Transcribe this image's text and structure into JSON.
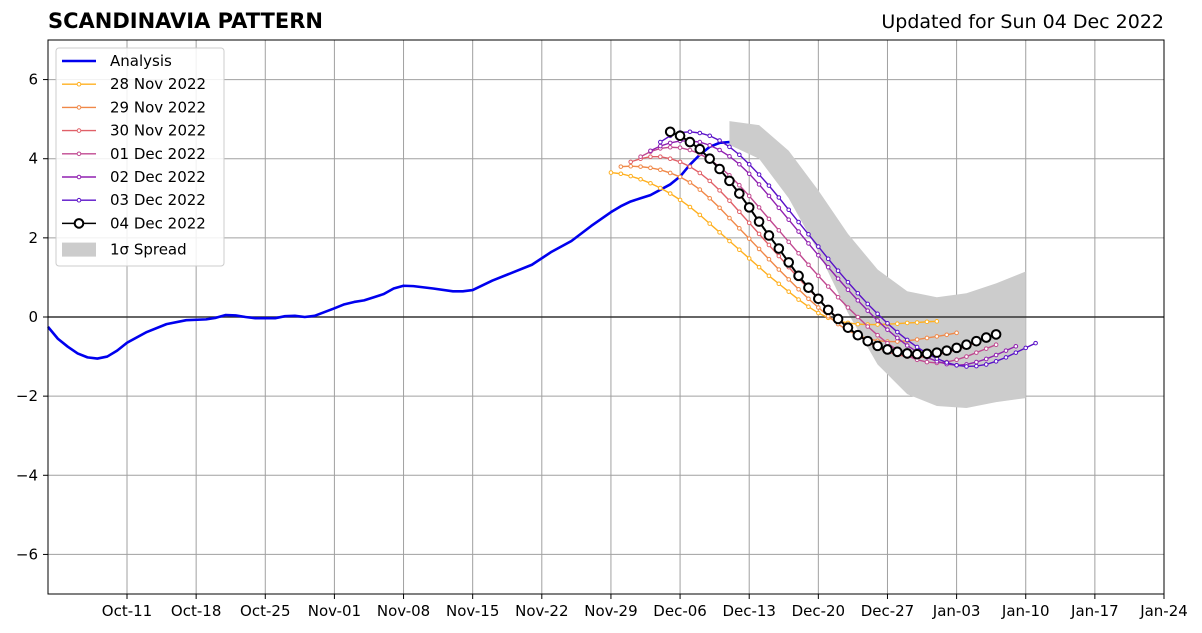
{
  "header": {
    "title": "SCANDINAVIA PATTERN",
    "updated": "Updated for Sun 04 Dec 2022"
  },
  "chart_data": {
    "type": "line",
    "title": "SCANDINAVIA PATTERN",
    "subtitle": "Updated for Sun 04 Dec 2022",
    "xlabel": "",
    "ylabel": "",
    "x_axis": {
      "type": "date",
      "xlim": [
        "2022-10-03",
        "2023-01-24"
      ],
      "tick_dates": [
        "2022-10-11",
        "2022-10-18",
        "2022-10-25",
        "2022-11-01",
        "2022-11-08",
        "2022-11-15",
        "2022-11-22",
        "2022-11-29",
        "2022-12-06",
        "2022-12-13",
        "2022-12-20",
        "2022-12-27",
        "2023-01-03",
        "2023-01-10",
        "2023-01-17",
        "2023-01-24"
      ],
      "tick_labels": [
        "Oct-11",
        "Oct-18",
        "Oct-25",
        "Nov-01",
        "Nov-08",
        "Nov-15",
        "Nov-22",
        "Nov-29",
        "Dec-06",
        "Dec-13",
        "Dec-20",
        "Dec-27",
        "Jan-03",
        "Jan-10",
        "Jan-17",
        "Jan-24"
      ]
    },
    "y_axis": {
      "ylim": [
        -7,
        7
      ],
      "ticks": [
        -6,
        -4,
        -2,
        0,
        2,
        4,
        6
      ],
      "tick_labels": [
        "−6",
        "−4",
        "−2",
        "0",
        "2",
        "4",
        "6"
      ]
    },
    "grid": true,
    "zero_line": true,
    "legend": {
      "placement": "top-left"
    },
    "analysis": {
      "name": "Analysis",
      "color": "#0000ee",
      "points": [
        [
          "2022-10-03",
          -0.25
        ],
        [
          "2022-10-04",
          -0.55
        ],
        [
          "2022-10-05",
          -0.75
        ],
        [
          "2022-10-06",
          -0.92
        ],
        [
          "2022-10-07",
          -1.02
        ],
        [
          "2022-10-08",
          -1.05
        ],
        [
          "2022-10-09",
          -1.0
        ],
        [
          "2022-10-10",
          -0.85
        ],
        [
          "2022-10-11",
          -0.65
        ],
        [
          "2022-10-13",
          -0.38
        ],
        [
          "2022-10-15",
          -0.18
        ],
        [
          "2022-10-17",
          -0.08
        ],
        [
          "2022-10-19",
          -0.06
        ],
        [
          "2022-10-20",
          -0.02
        ],
        [
          "2022-10-21",
          0.05
        ],
        [
          "2022-10-22",
          0.04
        ],
        [
          "2022-10-23",
          0.0
        ],
        [
          "2022-10-24",
          -0.03
        ],
        [
          "2022-10-26",
          -0.03
        ],
        [
          "2022-10-27",
          0.02
        ],
        [
          "2022-10-28",
          0.03
        ],
        [
          "2022-10-29",
          0.0
        ],
        [
          "2022-10-30",
          0.03
        ],
        [
          "2022-11-01",
          0.22
        ],
        [
          "2022-11-02",
          0.32
        ],
        [
          "2022-11-03",
          0.38
        ],
        [
          "2022-11-04",
          0.42
        ],
        [
          "2022-11-05",
          0.5
        ],
        [
          "2022-11-06",
          0.58
        ],
        [
          "2022-11-07",
          0.72
        ],
        [
          "2022-11-08",
          0.79
        ],
        [
          "2022-11-09",
          0.78
        ],
        [
          "2022-11-11",
          0.72
        ],
        [
          "2022-11-13",
          0.65
        ],
        [
          "2022-11-14",
          0.65
        ],
        [
          "2022-11-15",
          0.68
        ],
        [
          "2022-11-17",
          0.92
        ],
        [
          "2022-11-19",
          1.12
        ],
        [
          "2022-11-21",
          1.32
        ],
        [
          "2022-11-23",
          1.65
        ],
        [
          "2022-11-25",
          1.92
        ],
        [
          "2022-11-27",
          2.3
        ],
        [
          "2022-11-29",
          2.65
        ],
        [
          "2022-11-30",
          2.8
        ],
        [
          "2022-12-01",
          2.92
        ],
        [
          "2022-12-02",
          3.0
        ],
        [
          "2022-12-03",
          3.08
        ],
        [
          "2022-12-05",
          3.35
        ],
        [
          "2022-12-06",
          3.55
        ],
        [
          "2022-12-07",
          3.85
        ],
        [
          "2022-12-08",
          4.1
        ],
        [
          "2022-12-09",
          4.3
        ],
        [
          "2022-12-10",
          4.4
        ],
        [
          "2022-12-11",
          4.42
        ]
      ]
    },
    "spread": {
      "name": "1σ Spread",
      "color": "#cccccc",
      "x": [
        "2022-12-11",
        "2022-12-14",
        "2022-12-17",
        "2022-12-20",
        "2022-12-23",
        "2022-12-26",
        "2022-12-29",
        "2023-01-01",
        "2023-01-04",
        "2023-01-07",
        "2023-01-10"
      ],
      "upper": [
        4.95,
        4.85,
        4.2,
        3.2,
        2.1,
        1.2,
        0.65,
        0.5,
        0.6,
        0.85,
        1.15
      ],
      "lower": [
        4.35,
        4.0,
        3.0,
        1.65,
        0.1,
        -1.2,
        -1.95,
        -2.25,
        -2.3,
        -2.15,
        -2.05
      ]
    },
    "series": [
      {
        "name": "28 Nov 2022",
        "color": "#ffb020",
        "start": "2022-11-29",
        "values": [
          3.65,
          3.62,
          3.56,
          3.48,
          3.38,
          3.26,
          3.12,
          2.96,
          2.78,
          2.58,
          2.36,
          2.14,
          1.92,
          1.7,
          1.48,
          1.26,
          1.04,
          0.84,
          0.64,
          0.44,
          0.26,
          0.1,
          -0.02,
          -0.1,
          -0.15,
          -0.18,
          -0.19,
          -0.19,
          -0.18,
          -0.17,
          -0.15,
          -0.14,
          -0.12,
          -0.11
        ]
      },
      {
        "name": "29 Nov 2022",
        "color": "#f08848",
        "start": "2022-11-30",
        "values": [
          3.8,
          3.81,
          3.8,
          3.77,
          3.72,
          3.64,
          3.54,
          3.4,
          3.22,
          3.0,
          2.76,
          2.5,
          2.24,
          1.98,
          1.72,
          1.46,
          1.2,
          0.95,
          0.7,
          0.46,
          0.24,
          0.02,
          -0.18,
          -0.34,
          -0.46,
          -0.55,
          -0.6,
          -0.62,
          -0.62,
          -0.6,
          -0.57,
          -0.53,
          -0.49,
          -0.45,
          -0.4
        ]
      },
      {
        "name": "30 Nov 2022",
        "color": "#e06068",
        "start": "2022-12-01",
        "values": [
          3.92,
          4.0,
          4.05,
          4.05,
          4.0,
          3.92,
          3.8,
          3.64,
          3.44,
          3.2,
          2.94,
          2.66,
          2.38,
          2.1,
          1.82,
          1.54,
          1.26,
          0.98,
          0.71,
          0.45,
          0.2,
          -0.04,
          -0.26,
          -0.46,
          -0.63,
          -0.77,
          -0.88,
          -0.96,
          -1.0,
          -1.02,
          -1.0,
          -0.96,
          -0.9,
          -0.82,
          -0.74,
          -0.65
        ]
      },
      {
        "name": "01 Dec 2022",
        "color": "#c04890",
        "start": "2022-12-02",
        "values": [
          4.05,
          4.18,
          4.26,
          4.29,
          4.28,
          4.22,
          4.12,
          3.98,
          3.8,
          3.58,
          3.33,
          3.06,
          2.77,
          2.48,
          2.19,
          1.9,
          1.61,
          1.32,
          1.04,
          0.77,
          0.5,
          0.24,
          0.0,
          -0.24,
          -0.46,
          -0.66,
          -0.84,
          -0.98,
          -1.08,
          -1.14,
          -1.16,
          -1.14,
          -1.08,
          -1.0,
          -0.9,
          -0.8,
          -0.7
        ]
      },
      {
        "name": "02 Dec 2022",
        "color": "#9020b0",
        "start": "2022-12-03",
        "values": [
          4.2,
          4.32,
          4.4,
          4.45,
          4.45,
          4.42,
          4.34,
          4.22,
          4.06,
          3.86,
          3.62,
          3.35,
          3.06,
          2.76,
          2.46,
          2.16,
          1.86,
          1.56,
          1.26,
          0.97,
          0.69,
          0.42,
          0.16,
          -0.09,
          -0.32,
          -0.53,
          -0.72,
          -0.88,
          -1.02,
          -1.12,
          -1.19,
          -1.22,
          -1.2,
          -1.14,
          -1.06,
          -0.96,
          -0.85,
          -0.74
        ]
      },
      {
        "name": "03 Dec 2022",
        "color": "#5a10c8",
        "start": "2022-12-04",
        "values": [
          4.42,
          4.58,
          4.66,
          4.68,
          4.65,
          4.58,
          4.46,
          4.3,
          4.1,
          3.86,
          3.6,
          3.32,
          3.02,
          2.71,
          2.4,
          2.09,
          1.78,
          1.47,
          1.17,
          0.88,
          0.6,
          0.33,
          0.08,
          -0.16,
          -0.38,
          -0.58,
          -0.76,
          -0.92,
          -1.05,
          -1.15,
          -1.22,
          -1.25,
          -1.24,
          -1.2,
          -1.12,
          -1.02,
          -0.9,
          -0.78,
          -0.66
        ]
      },
      {
        "name": "04 Dec 2022",
        "color": "#000000",
        "start": "2022-12-05",
        "values": [
          4.68,
          4.58,
          4.42,
          4.24,
          4.0,
          3.74,
          3.44,
          3.12,
          2.77,
          2.41,
          2.06,
          1.73,
          1.38,
          1.04,
          0.74,
          0.46,
          0.18,
          -0.05,
          -0.27,
          -0.46,
          -0.61,
          -0.73,
          -0.82,
          -0.88,
          -0.92,
          -0.94,
          -0.93,
          -0.9,
          -0.85,
          -0.78,
          -0.7,
          -0.61,
          -0.52,
          -0.44
        ]
      }
    ]
  }
}
